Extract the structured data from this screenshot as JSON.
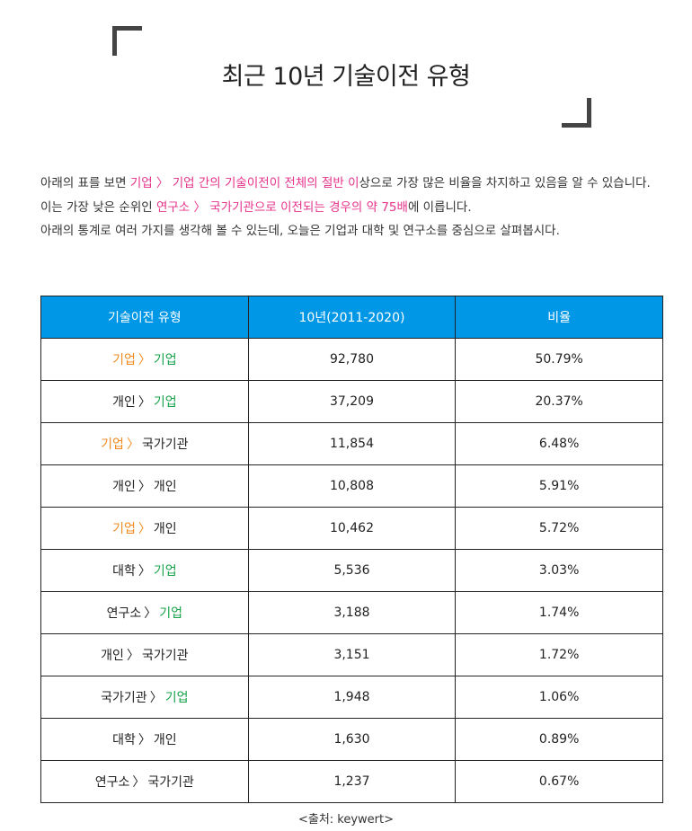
{
  "title": "최근 10년 기술이전 유형",
  "colors": {
    "header_bg": "#0097e6",
    "highlight_pink": "#e6318a",
    "company_orange": "#f28a1f",
    "company_green": "#17a34a"
  },
  "intro": {
    "line1": [
      {
        "text": "아래의 표를 보면 ",
        "hl": false
      },
      {
        "text": "기업 〉 기업 간의 기술이전이 전체의 절반 이",
        "hl": true
      },
      {
        "text": "상으로 가장 많은 비율을 차지하고 있음을 알 수 있습니다.",
        "hl": false
      }
    ],
    "line2": [
      {
        "text": "이는 가장 낮은 순위인 ",
        "hl": false
      },
      {
        "text": "연구소 〉 국가기관으로 이전되는 경우의 약 75배",
        "hl": true
      },
      {
        "text": "에 이릅니다.",
        "hl": false
      }
    ],
    "line3": "아래의 통계로 여러 가지를 생각해 볼 수 있는데, 오늘은 기업과 대학 및 연구소를 중심으로 살펴봅시다."
  },
  "table": {
    "headers": [
      "기술이전 유형",
      "10년(2011-2020)",
      "비율"
    ],
    "rows": [
      {
        "from": "기업",
        "from_color": "orange",
        "to": "기업",
        "to_color": "green",
        "count": "92,780",
        "ratio": "50.79%"
      },
      {
        "from": "개인",
        "from_color": "default",
        "to": "기업",
        "to_color": "green",
        "count": "37,209",
        "ratio": "20.37%"
      },
      {
        "from": "기업",
        "from_color": "orange",
        "to": "국가기관",
        "to_color": "default",
        "count": "11,854",
        "ratio": "6.48%"
      },
      {
        "from": "개인",
        "from_color": "default",
        "to": "개인",
        "to_color": "default",
        "count": "10,808",
        "ratio": "5.91%"
      },
      {
        "from": "기업",
        "from_color": "orange",
        "to": "개인",
        "to_color": "default",
        "count": "10,462",
        "ratio": "5.72%"
      },
      {
        "from": "대학",
        "from_color": "default",
        "to": "기업",
        "to_color": "green",
        "count": "5,536",
        "ratio": "3.03%"
      },
      {
        "from": "연구소",
        "from_color": "default",
        "to": "기업",
        "to_color": "green",
        "count": "3,188",
        "ratio": "1.74%"
      },
      {
        "from": "개인",
        "from_color": "default",
        "to": "국가기관",
        "to_color": "default",
        "count": "3,151",
        "ratio": "1.72%"
      },
      {
        "from": "국가기관",
        "from_color": "default",
        "to": "기업",
        "to_color": "green",
        "count": "1,948",
        "ratio": "1.06%"
      },
      {
        "from": "대학",
        "from_color": "default",
        "to": "개인",
        "to_color": "default",
        "count": "1,630",
        "ratio": "0.89%"
      },
      {
        "from": "연구소",
        "from_color": "default",
        "to": "국가기관",
        "to_color": "default",
        "count": "1,237",
        "ratio": "0.67%"
      }
    ],
    "arrow": "〉"
  },
  "source": "<출처: keywert>"
}
